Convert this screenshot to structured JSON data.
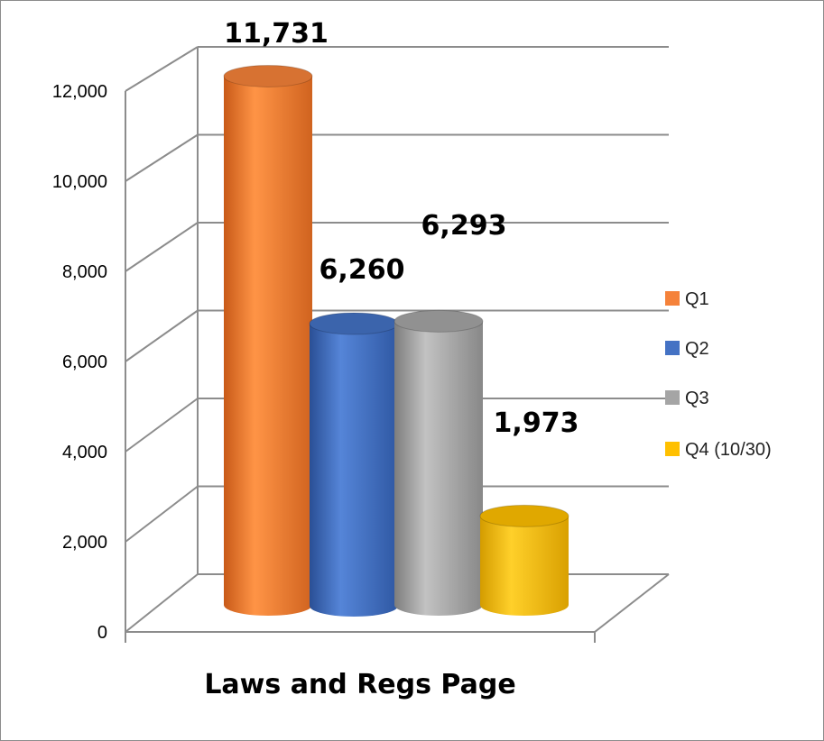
{
  "chart_data": {
    "type": "bar",
    "title": "",
    "xlabel": "Laws and Regs Page",
    "ylabel": "",
    "ylim": [
      0,
      12000
    ],
    "y_ticks": [
      "0",
      "2,000",
      "4,000",
      "6,000",
      "8,000",
      "10,000",
      "12,000"
    ],
    "y_tick_values": [
      0,
      2000,
      4000,
      6000,
      8000,
      10000,
      12000
    ],
    "categories": [
      "Laws and Regs Page"
    ],
    "series": [
      {
        "name": "Q1",
        "values": [
          11731
        ],
        "label": "11,731",
        "color": "#f5823a"
      },
      {
        "name": "Q2",
        "values": [
          6260
        ],
        "label": "6,260",
        "color": "#4472c4"
      },
      {
        "name": "Q3",
        "values": [
          6293
        ],
        "label": "6,293",
        "color": "#a5a5a5"
      },
      {
        "name": "Q4 (10/30)",
        "values": [
          1973
        ],
        "label": "1,973",
        "color": "#ffc000"
      }
    ],
    "grid": true,
    "legend_position": "right",
    "style": "3d-cylinder"
  }
}
